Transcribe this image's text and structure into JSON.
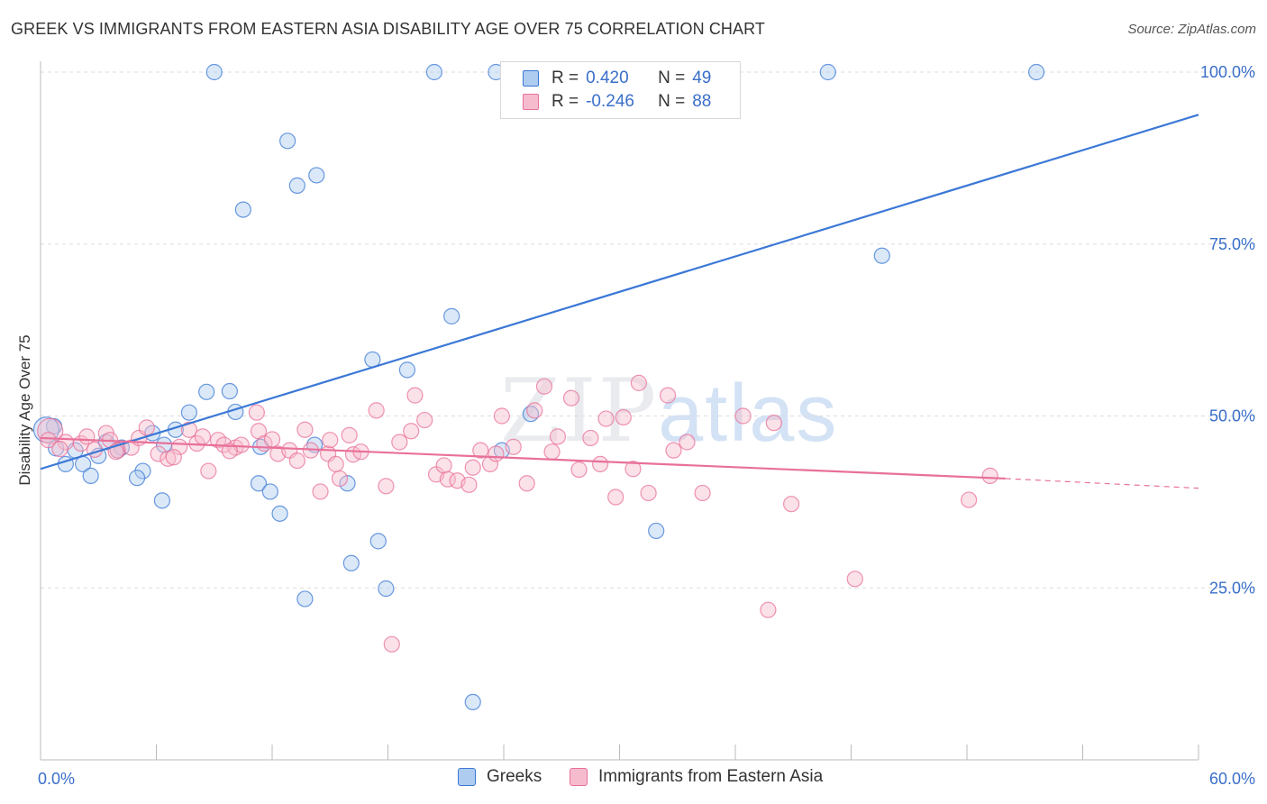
{
  "title": "GREEK VS IMMIGRANTS FROM EASTERN ASIA DISABILITY AGE OVER 75 CORRELATION CHART",
  "source": "Source: ZipAtlas.com",
  "watermark": {
    "zip": "ZIP",
    "atlas": "atlas"
  },
  "colors": {
    "blue": "#3b78d6",
    "blue_fill": "#aecbf0",
    "pink": "#e8709a",
    "pink_fill": "#f6bccd",
    "grid": "#dddddd",
    "tick_label": "#3a6fc9"
  },
  "legend_top": {
    "rows": [
      {
        "r_label": "R =",
        "r_value": "0.420",
        "n_label": "N =",
        "n_value": "49"
      },
      {
        "r_label": "R =",
        "r_value": "-0.246",
        "n_label": "N =",
        "n_value": "88"
      }
    ]
  },
  "legend_bottom": {
    "items": [
      "Greeks",
      "Immigrants from Eastern Asia"
    ]
  },
  "chart_data": {
    "type": "scatter",
    "title": "GREEK VS IMMIGRANTS FROM EASTERN ASIA DISABILITY AGE OVER 75 CORRELATION CHART",
    "xlabel": "",
    "ylabel": "Disability Age Over 75",
    "xlim": [
      0,
      60
    ],
    "ylim": [
      0,
      100
    ],
    "x_tick_labels": [
      "0.0%",
      "60.0%"
    ],
    "y_ticks": [
      25,
      50,
      75,
      100
    ],
    "y_tick_labels": [
      "25.0%",
      "50.0%",
      "75.0%",
      "100.0%"
    ],
    "grid": true,
    "legend_position": "top-center",
    "series": [
      {
        "name": "Greeks",
        "color": "#3b78d6",
        "trend": {
          "x": [
            0,
            60
          ],
          "y": [
            42.3,
            93.8
          ]
        },
        "points": [
          [
            9.0,
            100
          ],
          [
            20.4,
            100
          ],
          [
            23.6,
            100
          ],
          [
            24.9,
            100
          ],
          [
            40.8,
            100
          ],
          [
            51.6,
            100
          ],
          [
            12.8,
            90
          ],
          [
            13.3,
            83.5
          ],
          [
            14.3,
            85.0
          ],
          [
            10.5,
            80.0
          ],
          [
            43.6,
            73.3
          ],
          [
            21.3,
            64.5
          ],
          [
            17.2,
            58.2
          ],
          [
            19.0,
            56.7
          ],
          [
            8.6,
            53.5
          ],
          [
            9.8,
            53.6
          ],
          [
            7.7,
            50.5
          ],
          [
            10.1,
            50.6
          ],
          [
            25.4,
            50.3
          ],
          [
            7.0,
            48.0
          ],
          [
            5.8,
            47.5
          ],
          [
            0.7,
            48.5
          ],
          [
            0.8,
            45.3
          ],
          [
            1.8,
            45.0
          ],
          [
            3.4,
            46.2
          ],
          [
            4.2,
            45.4
          ],
          [
            6.4,
            45.8
          ],
          [
            11.4,
            45.5
          ],
          [
            14.2,
            45.8
          ],
          [
            1.3,
            43.0
          ],
          [
            2.2,
            43.0
          ],
          [
            3.0,
            44.2
          ],
          [
            5.3,
            42.0
          ],
          [
            2.6,
            41.3
          ],
          [
            5.0,
            41.0
          ],
          [
            11.3,
            40.2
          ],
          [
            11.9,
            39.0
          ],
          [
            15.9,
            40.2
          ],
          [
            6.3,
            37.7
          ],
          [
            12.4,
            35.8
          ],
          [
            17.5,
            31.8
          ],
          [
            16.1,
            28.6
          ],
          [
            31.9,
            33.3
          ],
          [
            13.7,
            23.4
          ],
          [
            17.9,
            24.9
          ],
          [
            22.4,
            8.4
          ],
          [
            0.3,
            48.0
          ],
          [
            23.9,
            45.0
          ],
          [
            4.0,
            45.0
          ]
        ]
      },
      {
        "name": "Immigrants from Eastern Asia",
        "color": "#e8709a",
        "trend": {
          "x": [
            0,
            50
          ],
          "y": [
            46.8,
            40.9
          ]
        },
        "trend_dashed": {
          "x": [
            50,
            60
          ],
          "y": [
            40.9,
            39.5
          ]
        },
        "points": [
          [
            0.5,
            47.8
          ],
          [
            1.3,
            46.2
          ],
          [
            2.1,
            46.0
          ],
          [
            2.8,
            45.1
          ],
          [
            3.4,
            47.5
          ],
          [
            3.6,
            46.5
          ],
          [
            4.0,
            45.0
          ],
          [
            4.7,
            45.4
          ],
          [
            5.1,
            46.8
          ],
          [
            5.5,
            48.3
          ],
          [
            6.1,
            44.5
          ],
          [
            6.6,
            43.8
          ],
          [
            7.2,
            45.5
          ],
          [
            7.7,
            48.0
          ],
          [
            8.1,
            46.0
          ],
          [
            8.7,
            42.0
          ],
          [
            9.2,
            46.5
          ],
          [
            9.5,
            45.8
          ],
          [
            10.1,
            45.4
          ],
          [
            10.4,
            45.8
          ],
          [
            11.2,
            50.5
          ],
          [
            11.3,
            47.8
          ],
          [
            11.6,
            46.0
          ],
          [
            12.3,
            44.5
          ],
          [
            12.9,
            45.0
          ],
          [
            13.7,
            48.0
          ],
          [
            14.0,
            45.0
          ],
          [
            14.5,
            39.0
          ],
          [
            14.9,
            44.5
          ],
          [
            15.3,
            43.0
          ],
          [
            15.5,
            40.9
          ],
          [
            16.2,
            44.4
          ],
          [
            16.6,
            44.8
          ],
          [
            17.4,
            50.8
          ],
          [
            17.9,
            39.8
          ],
          [
            18.6,
            46.2
          ],
          [
            19.2,
            47.8
          ],
          [
            19.4,
            53.0
          ],
          [
            19.9,
            49.4
          ],
          [
            20.5,
            41.5
          ],
          [
            20.9,
            42.8
          ],
          [
            21.1,
            40.8
          ],
          [
            21.6,
            40.6
          ],
          [
            22.2,
            40.0
          ],
          [
            22.4,
            42.5
          ],
          [
            22.8,
            45.0
          ],
          [
            23.3,
            43.0
          ],
          [
            23.6,
            44.5
          ],
          [
            23.9,
            50.0
          ],
          [
            24.5,
            45.5
          ],
          [
            25.2,
            40.2
          ],
          [
            25.6,
            50.8
          ],
          [
            26.1,
            54.3
          ],
          [
            26.5,
            44.8
          ],
          [
            26.8,
            47.0
          ],
          [
            27.5,
            52.6
          ],
          [
            27.9,
            42.2
          ],
          [
            28.5,
            46.8
          ],
          [
            29.0,
            43.0
          ],
          [
            29.3,
            49.6
          ],
          [
            29.8,
            38.2
          ],
          [
            30.2,
            49.8
          ],
          [
            30.7,
            42.3
          ],
          [
            31.0,
            54.8
          ],
          [
            31.5,
            38.8
          ],
          [
            32.5,
            53.0
          ],
          [
            32.8,
            45.0
          ],
          [
            33.5,
            46.2
          ],
          [
            34.3,
            38.8
          ],
          [
            36.4,
            50.0
          ],
          [
            38.0,
            49.0
          ],
          [
            38.9,
            37.2
          ],
          [
            42.2,
            26.3
          ],
          [
            37.7,
            21.8
          ],
          [
            48.1,
            37.8
          ],
          [
            49.2,
            41.3
          ],
          [
            18.2,
            16.8
          ],
          [
            0.4,
            46.5
          ],
          [
            1.0,
            45.2
          ],
          [
            2.4,
            47.0
          ],
          [
            3.9,
            44.8
          ],
          [
            6.9,
            44.0
          ],
          [
            8.4,
            47.0
          ],
          [
            9.8,
            44.9
          ],
          [
            12.0,
            46.6
          ],
          [
            13.3,
            43.5
          ],
          [
            16.0,
            47.2
          ],
          [
            15.0,
            46.5
          ]
        ]
      }
    ]
  }
}
